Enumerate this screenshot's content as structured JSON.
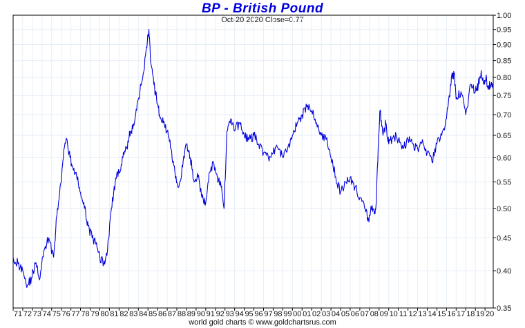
{
  "colors": {
    "line": "#0000dd",
    "title": "#0000dd",
    "grid": "#e6eef7",
    "axis": "#000000"
  },
  "chart_data": {
    "type": "line",
    "title": "BP  -  British Pound",
    "subtitle": "Oct-20  2020   Close=0.77",
    "footer": "world gold charts © www.goldchartsrus.com",
    "y_scale": "log",
    "ylim": [
      0.35,
      1.0
    ],
    "y_ticks": [
      1.0,
      0.95,
      0.9,
      0.85,
      0.8,
      0.75,
      0.7,
      0.65,
      0.6,
      0.55,
      0.5,
      0.45,
      0.4,
      0.35
    ],
    "y_tick_labels": [
      "1.00",
      "0.95",
      "0.90",
      "0.85",
      "0.80",
      "0.75",
      "0.70",
      "0.65",
      "0.60",
      "0.55",
      "0.50",
      "0.45",
      "0.40",
      "0.35"
    ],
    "xlim": [
      1971.0,
      2020.85
    ],
    "x_tick_labels": [
      "71",
      "72",
      "73",
      "74",
      "75",
      "76",
      "77",
      "78",
      "79",
      "80",
      "81",
      "82",
      "83",
      "84",
      "85",
      "86",
      "87",
      "88",
      "89",
      "90",
      "91",
      "92",
      "93",
      "94",
      "95",
      "96",
      "97",
      "98",
      "99",
      "00",
      "01",
      "02",
      "03",
      "04",
      "05",
      "06",
      "07",
      "08",
      "09",
      "10",
      "11",
      "12",
      "13",
      "14",
      "15",
      "16",
      "17",
      "18",
      "19",
      "20"
    ],
    "grid": true,
    "series": [
      {
        "x": [
          1971.0,
          1971.5,
          1972.0,
          1972.5,
          1972.9,
          1973.3,
          1973.8,
          1974.2,
          1974.7,
          1975.2,
          1975.6,
          1976.0,
          1976.3,
          1976.6,
          1976.9,
          1977.2,
          1977.6,
          1978.0,
          1978.4,
          1978.8,
          1979.2,
          1979.6,
          1980.0,
          1980.4,
          1980.8,
          1981.2,
          1981.6,
          1982.0,
          1982.4,
          1982.8,
          1983.2,
          1983.6,
          1984.0,
          1984.4,
          1984.8,
          1985.1,
          1985.3,
          1985.6,
          1985.9,
          1986.2,
          1986.6,
          1987.0,
          1987.4,
          1987.8,
          1988.2,
          1988.6,
          1989.0,
          1989.4,
          1989.8,
          1990.2,
          1990.6,
          1991.0,
          1991.4,
          1991.8,
          1992.2,
          1992.6,
          1992.9,
          1993.2,
          1993.6,
          1994.0,
          1994.5,
          1995.0,
          1995.5,
          1996.0,
          1996.5,
          1997.0,
          1997.5,
          1998.0,
          1998.5,
          1999.0,
          1999.5,
          2000.0,
          2000.5,
          2001.0,
          2001.5,
          2002.0,
          2002.5,
          2003.0,
          2003.5,
          2004.0,
          2004.5,
          2005.0,
          2005.5,
          2006.0,
          2006.5,
          2007.0,
          2007.5,
          2007.9,
          2008.2,
          2008.5,
          2008.7,
          2008.9,
          2009.1,
          2009.4,
          2009.7,
          2010.0,
          2010.5,
          2011.0,
          2011.5,
          2012.0,
          2012.5,
          2013.0,
          2013.5,
          2014.0,
          2014.5,
          2015.0,
          2015.5,
          2016.0,
          2016.3,
          2016.5,
          2016.8,
          2017.0,
          2017.5,
          2018.0,
          2018.5,
          2019.0,
          2019.3,
          2019.6,
          2019.9,
          2020.1,
          2020.3,
          2020.5,
          2020.8
        ],
        "y": [
          0.42,
          0.41,
          0.4,
          0.38,
          0.39,
          0.41,
          0.39,
          0.43,
          0.45,
          0.42,
          0.5,
          0.55,
          0.62,
          0.64,
          0.6,
          0.58,
          0.56,
          0.53,
          0.5,
          0.47,
          0.45,
          0.44,
          0.42,
          0.41,
          0.43,
          0.5,
          0.55,
          0.57,
          0.6,
          0.62,
          0.66,
          0.68,
          0.74,
          0.79,
          0.88,
          0.95,
          0.84,
          0.78,
          0.74,
          0.7,
          0.68,
          0.66,
          0.62,
          0.57,
          0.54,
          0.58,
          0.63,
          0.6,
          0.55,
          0.56,
          0.52,
          0.51,
          0.57,
          0.59,
          0.56,
          0.54,
          0.5,
          0.66,
          0.69,
          0.66,
          0.68,
          0.65,
          0.64,
          0.65,
          0.63,
          0.61,
          0.6,
          0.61,
          0.62,
          0.6,
          0.62,
          0.65,
          0.68,
          0.7,
          0.72,
          0.71,
          0.68,
          0.65,
          0.64,
          0.6,
          0.56,
          0.53,
          0.55,
          0.56,
          0.54,
          0.52,
          0.5,
          0.48,
          0.5,
          0.49,
          0.51,
          0.62,
          0.71,
          0.65,
          0.68,
          0.63,
          0.65,
          0.64,
          0.62,
          0.64,
          0.63,
          0.62,
          0.64,
          0.61,
          0.59,
          0.63,
          0.65,
          0.69,
          0.75,
          0.8,
          0.81,
          0.74,
          0.76,
          0.7,
          0.78,
          0.76,
          0.78,
          0.82,
          0.78,
          0.8,
          0.77,
          0.78,
          0.77
        ]
      }
    ]
  }
}
